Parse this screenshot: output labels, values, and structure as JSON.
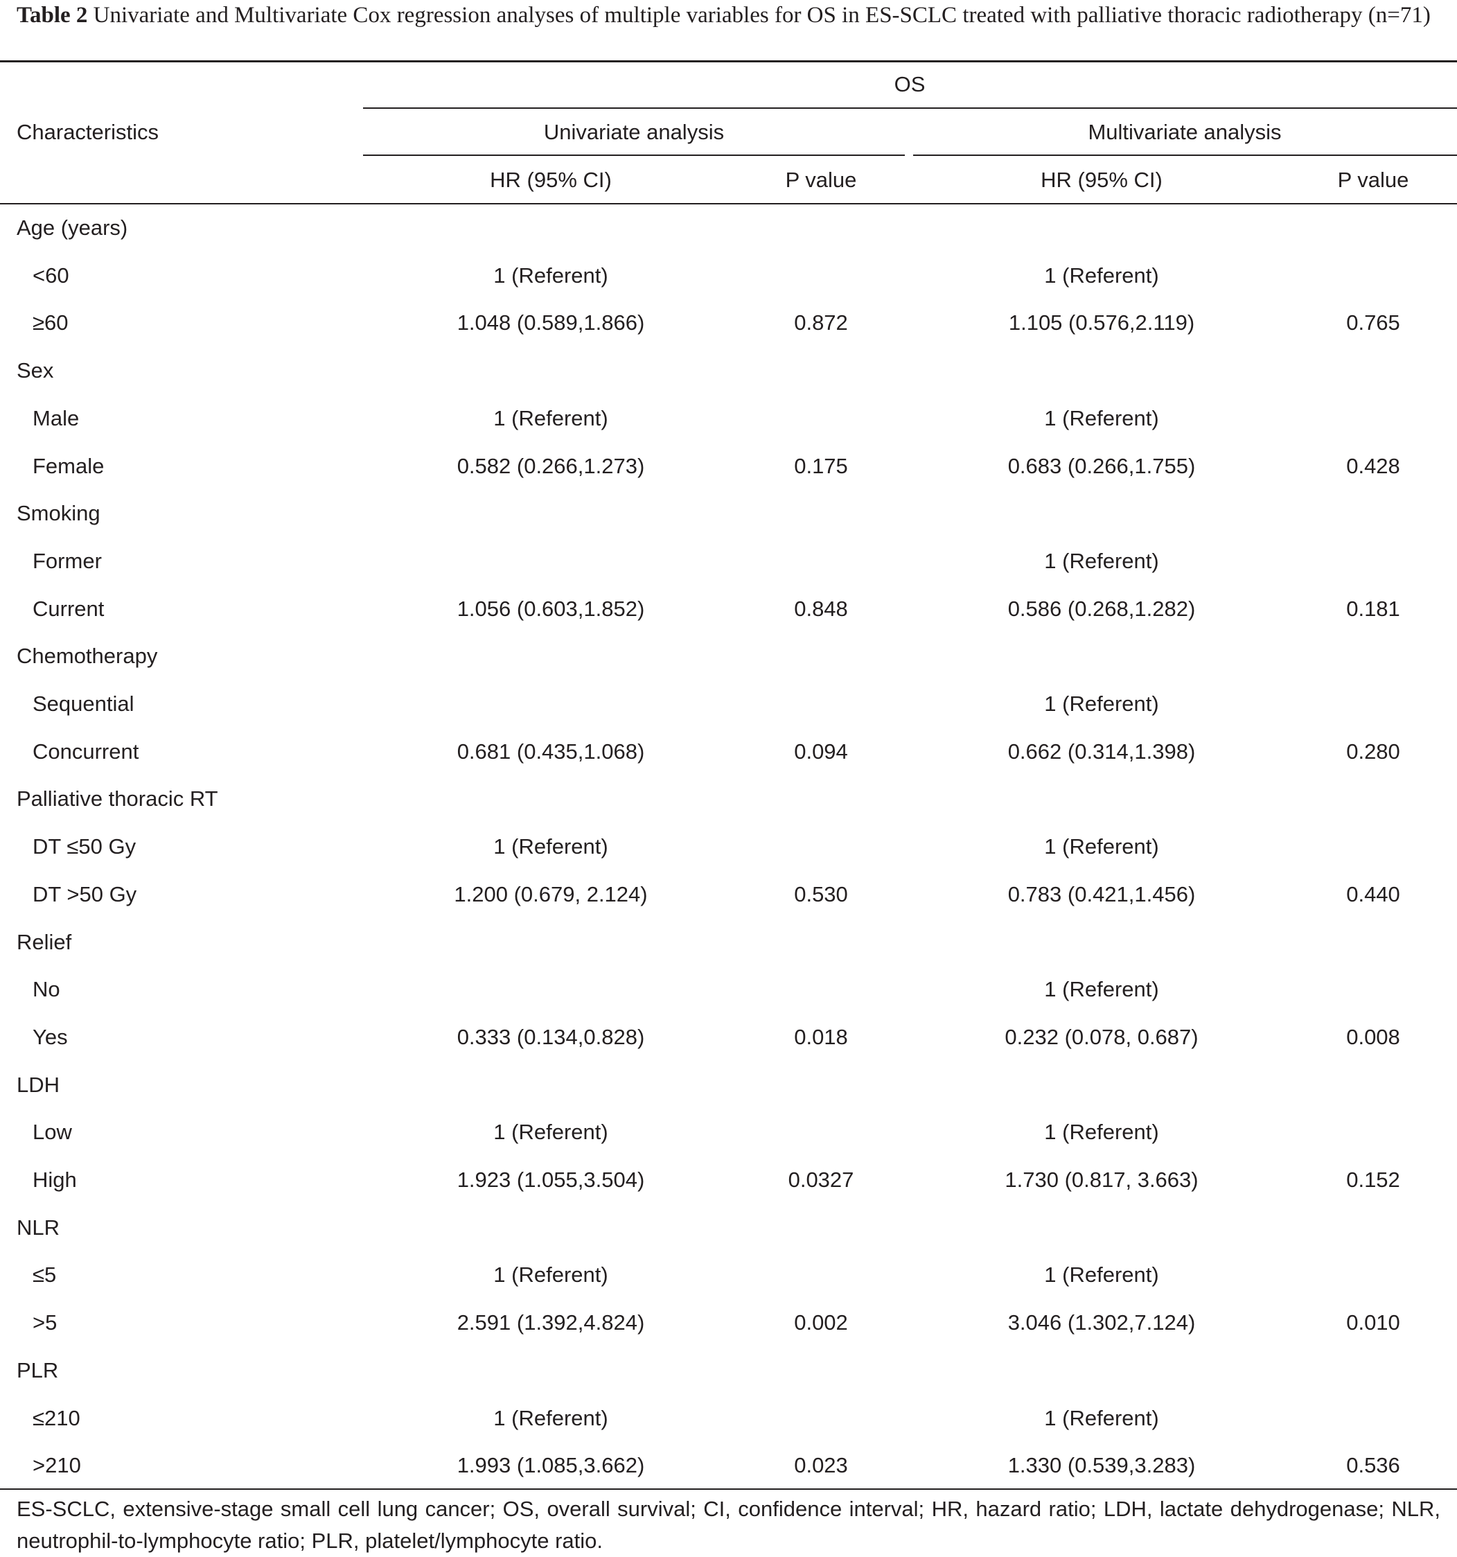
{
  "caption": {
    "label": "Table 2",
    "text": "Univariate and Multivariate Cox regression analyses of multiple variables for OS in ES-SCLC treated with palliative thoracic radiotherapy (n=71)"
  },
  "header": {
    "characteristics": "Characteristics",
    "group": "OS",
    "univariate": "Univariate analysis",
    "multivariate": "Multivariate analysis",
    "hr": "HR (95% CI)",
    "p": "P value"
  },
  "rows": [
    {
      "label": "Age (years)",
      "sub": false,
      "uni_hr": "",
      "uni_p": "",
      "multi_hr": "",
      "multi_p": ""
    },
    {
      "label": "<60",
      "sub": true,
      "uni_hr": "1 (Referent)",
      "uni_p": "",
      "multi_hr": "1 (Referent)",
      "multi_p": ""
    },
    {
      "label": "≥60",
      "sub": true,
      "uni_hr": "1.048 (0.589,1.866)",
      "uni_p": "0.872",
      "multi_hr": "1.105 (0.576,2.119)",
      "multi_p": "0.765"
    },
    {
      "label": "Sex",
      "sub": false,
      "uni_hr": "",
      "uni_p": "",
      "multi_hr": "",
      "multi_p": ""
    },
    {
      "label": "Male",
      "sub": true,
      "uni_hr": "1 (Referent)",
      "uni_p": "",
      "multi_hr": "1 (Referent)",
      "multi_p": ""
    },
    {
      "label": "Female",
      "sub": true,
      "uni_hr": "0.582 (0.266,1.273)",
      "uni_p": "0.175",
      "multi_hr": "0.683 (0.266,1.755)",
      "multi_p": "0.428"
    },
    {
      "label": "Smoking",
      "sub": false,
      "uni_hr": "",
      "uni_p": "",
      "multi_hr": "",
      "multi_p": ""
    },
    {
      "label": "Former",
      "sub": true,
      "uni_hr": "",
      "uni_p": "",
      "multi_hr": "1 (Referent)",
      "multi_p": ""
    },
    {
      "label": "Current",
      "sub": true,
      "uni_hr": "1.056 (0.603,1.852)",
      "uni_p": "0.848",
      "multi_hr": "0.586 (0.268,1.282)",
      "multi_p": "0.181"
    },
    {
      "label": "Chemotherapy",
      "sub": false,
      "uni_hr": "",
      "uni_p": "",
      "multi_hr": "",
      "multi_p": ""
    },
    {
      "label": "Sequential",
      "sub": true,
      "uni_hr": "",
      "uni_p": "",
      "multi_hr": "1 (Referent)",
      "multi_p": ""
    },
    {
      "label": "Concurrent",
      "sub": true,
      "uni_hr": "0.681 (0.435,1.068)",
      "uni_p": "0.094",
      "multi_hr": "0.662 (0.314,1.398)",
      "multi_p": "0.280"
    },
    {
      "label": "Palliative thoracic RT",
      "sub": false,
      "uni_hr": "",
      "uni_p": "",
      "multi_hr": "",
      "multi_p": ""
    },
    {
      "label": "DT ≤50 Gy",
      "sub": true,
      "uni_hr": "1 (Referent)",
      "uni_p": "",
      "multi_hr": "1 (Referent)",
      "multi_p": ""
    },
    {
      "label": "DT >50 Gy",
      "sub": true,
      "uni_hr": "1.200 (0.679, 2.124)",
      "uni_p": "0.530",
      "multi_hr": "0.783 (0.421,1.456)",
      "multi_p": "0.440"
    },
    {
      "label": "Relief",
      "sub": false,
      "uni_hr": "",
      "uni_p": "",
      "multi_hr": "",
      "multi_p": ""
    },
    {
      "label": "No",
      "sub": true,
      "uni_hr": "",
      "uni_p": "",
      "multi_hr": "1 (Referent)",
      "multi_p": ""
    },
    {
      "label": "Yes",
      "sub": true,
      "uni_hr": "0.333 (0.134,0.828)",
      "uni_p": "0.018",
      "multi_hr": "0.232 (0.078, 0.687)",
      "multi_p": "0.008"
    },
    {
      "label": "LDH",
      "sub": false,
      "uni_hr": "",
      "uni_p": "",
      "multi_hr": "",
      "multi_p": ""
    },
    {
      "label": "Low",
      "sub": true,
      "uni_hr": "1 (Referent)",
      "uni_p": "",
      "multi_hr": "1 (Referent)",
      "multi_p": ""
    },
    {
      "label": "High",
      "sub": true,
      "uni_hr": "1.923 (1.055,3.504)",
      "uni_p": "0.0327",
      "multi_hr": "1.730 (0.817, 3.663)",
      "multi_p": "0.152"
    },
    {
      "label": "NLR",
      "sub": false,
      "uni_hr": "",
      "uni_p": "",
      "multi_hr": "",
      "multi_p": ""
    },
    {
      "label": "≤5",
      "sub": true,
      "uni_hr": "1 (Referent)",
      "uni_p": "",
      "multi_hr": "1 (Referent)",
      "multi_p": ""
    },
    {
      "label": ">5",
      "sub": true,
      "uni_hr": "2.591 (1.392,4.824)",
      "uni_p": "0.002",
      "multi_hr": "3.046 (1.302,7.124)",
      "multi_p": "0.010"
    },
    {
      "label": "PLR",
      "sub": false,
      "uni_hr": "",
      "uni_p": "",
      "multi_hr": "",
      "multi_p": ""
    },
    {
      "label": "≤210",
      "sub": true,
      "uni_hr": "1 (Referent)",
      "uni_p": "",
      "multi_hr": "1 (Referent)",
      "multi_p": ""
    },
    {
      "label": ">210",
      "sub": true,
      "uni_hr": "1.993 (1.085,3.662)",
      "uni_p": "0.023",
      "multi_hr": "1.330 (0.539,3.283)",
      "multi_p": "0.536"
    }
  ],
  "footnote": "ES-SCLC, extensive-stage small cell lung cancer; OS, overall survival; CI, confidence interval; HR, hazard ratio; LDH, lactate dehydrogenase; NLR, neutrophil-to-lymphocyte ratio; PLR, platelet/lymphocyte ratio."
}
